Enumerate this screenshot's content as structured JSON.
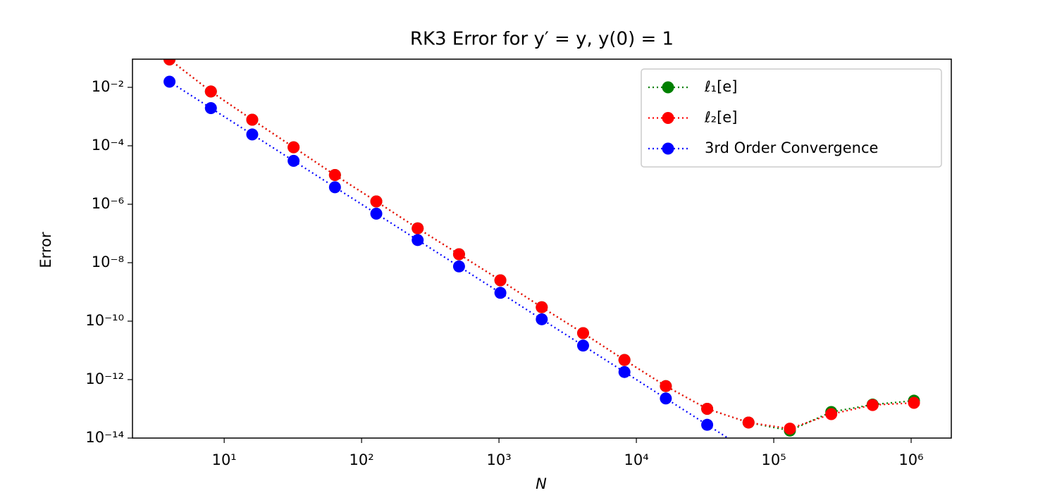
{
  "chart_data": {
    "type": "line",
    "title": "RK3 Error for y′ = y, y(0) = 1",
    "x_label": "N",
    "y_label": "Error",
    "x": [
      4,
      8,
      16,
      32,
      64,
      128,
      256,
      512,
      1024,
      2048,
      4096,
      8192,
      16384,
      32768,
      65536,
      131072,
      262144,
      524288,
      1048576
    ],
    "series": [
      {
        "name": "ℓ₁[e]",
        "color": "#008000",
        "values": [
          0.09,
          0.0072,
          0.00078,
          8.9e-05,
          1e-05,
          1.25e-06,
          1.5e-07,
          1.95e-08,
          2.5e-09,
          3e-10,
          3.9e-11,
          4.7e-12,
          6e-13,
          1e-13,
          3.4e-14,
          1.8e-14,
          7.8e-14,
          1.4e-13,
          1.9e-13
        ]
      },
      {
        "name": "ℓ₂[e]",
        "color": "#ff0000",
        "values": [
          0.09,
          0.0072,
          0.00078,
          8.9e-05,
          1e-05,
          1.25e-06,
          1.5e-07,
          1.95e-08,
          2.5e-09,
          3e-10,
          3.9e-11,
          4.7e-12,
          6e-13,
          1e-13,
          3.4e-14,
          2.1e-14,
          6.6e-14,
          1.35e-13,
          1.6e-13
        ]
      },
      {
        "name": "3rd Order Convergence",
        "color": "#0000ff",
        "values": [
          0.0156,
          0.00195,
          0.000244,
          3.05e-05,
          3.81e-06,
          4.77e-07,
          5.96e-08,
          7.45e-09,
          9.3e-10,
          1.16e-10,
          1.46e-11,
          1.82e-12,
          2.27e-13,
          2.84e-14,
          3.55e-15,
          null,
          null,
          null,
          null
        ]
      }
    ],
    "xscale": "log",
    "yscale": "log",
    "xlim": [
      2.15,
      1960000
    ],
    "ylim": [
      1e-14,
      0.092
    ],
    "xticks": [
      {
        "value": 10,
        "label": "10¹"
      },
      {
        "value": 100,
        "label": "10²"
      },
      {
        "value": 1000,
        "label": "10³"
      },
      {
        "value": 10000,
        "label": "10⁴"
      },
      {
        "value": 100000,
        "label": "10⁵"
      },
      {
        "value": 1000000,
        "label": "10⁶"
      }
    ],
    "yticks": [
      {
        "value": 1e-14,
        "label": "10⁻¹⁴"
      },
      {
        "value": 1e-12,
        "label": "10⁻¹²"
      },
      {
        "value": 1e-10,
        "label": "10⁻¹⁰"
      },
      {
        "value": 1e-08,
        "label": "10⁻⁸"
      },
      {
        "value": 1e-06,
        "label": "10⁻⁶"
      },
      {
        "value": 0.0001,
        "label": "10⁻⁴"
      },
      {
        "value": 0.01,
        "label": "10⁻²"
      }
    ],
    "legend": "upper right",
    "grid": false
  }
}
